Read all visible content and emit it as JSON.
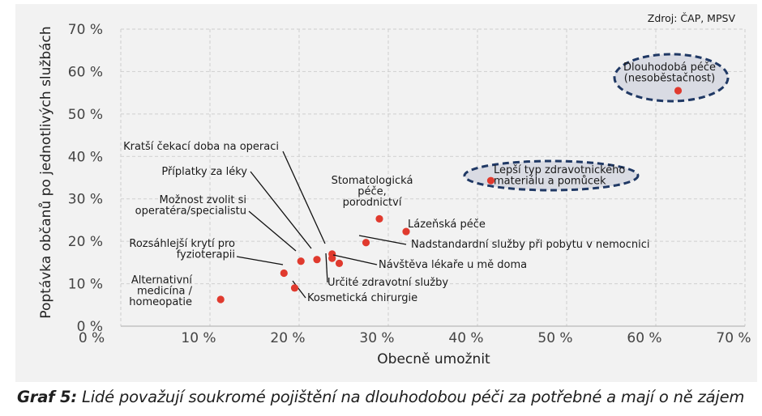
{
  "chart_data": {
    "type": "scatter",
    "xlabel": "Obecně umožnit",
    "ylabel": "Poptávka občanů po jednotlivých službách",
    "xlim": [
      0,
      70
    ],
    "ylim": [
      0,
      70
    ],
    "x_ticks": [
      "10 %",
      "20 %",
      "30 %",
      "40 %",
      "50 %",
      "60 %",
      "70 %"
    ],
    "y_ticks": [
      "0 %",
      "10 %",
      "20 %",
      "30 %",
      "40 %",
      "50 %",
      "60 %",
      "70 %"
    ],
    "grid": true,
    "marker_color": "#e03a2e",
    "highlight_color": "#1f3864",
    "source": "Zdroj: ČAP, MPSV",
    "points": [
      {
        "lines": [
          "Dlouhodobá péče",
          "(nesoběstačnost)"
        ],
        "x": 62.5,
        "y": 55.5,
        "highlight": true
      },
      {
        "lines": [
          "Lepší typ zdravotnického",
          "materiálu a pomůcek"
        ],
        "x": 41.5,
        "y": 34.3,
        "highlight": true
      },
      {
        "lines": [
          "Stomatologická",
          "péče,",
          "porodnictví"
        ],
        "x": 29.0,
        "y": 25.3
      },
      {
        "lines": [
          "Lázeňská péče"
        ],
        "x": 32.0,
        "y": 22.3
      },
      {
        "lines": [
          "Nadstandardní služby při pobytu v nemocnici"
        ],
        "x": 27.5,
        "y": 19.7
      },
      {
        "lines": [
          "Kratší čekací doba na operaci"
        ],
        "x": 23.7,
        "y": 17.0
      },
      {
        "lines": [
          "Příplatky za léky"
        ],
        "x": 22.0,
        "y": 15.7
      },
      {
        "lines": [
          "Možnost zvolit si",
          "operatéra/specialistu"
        ],
        "x": 20.2,
        "y": 15.3
      },
      {
        "lines": [
          "Určité zdravotní služby"
        ],
        "x": 23.7,
        "y": 16.0
      },
      {
        "lines": [
          "Návštěva lékaře u mě doma"
        ],
        "x": 24.5,
        "y": 14.8
      },
      {
        "lines": [
          "Rozsáhlejší krytí pro",
          "fyzioterapii"
        ],
        "x": 18.3,
        "y": 12.5
      },
      {
        "lines": [
          "Kosmetická chirurgie"
        ],
        "x": 19.5,
        "y": 9.0
      },
      {
        "lines": [
          "Alternativní",
          "medicína /",
          "homeopatie"
        ],
        "x": 11.2,
        "y": 6.3
      }
    ]
  },
  "caption": {
    "prefix": "Graf 5:",
    "text": " Lidé považují soukromé pojištění na dlouhodobou péči za potřebné a mají o ně zájem"
  }
}
